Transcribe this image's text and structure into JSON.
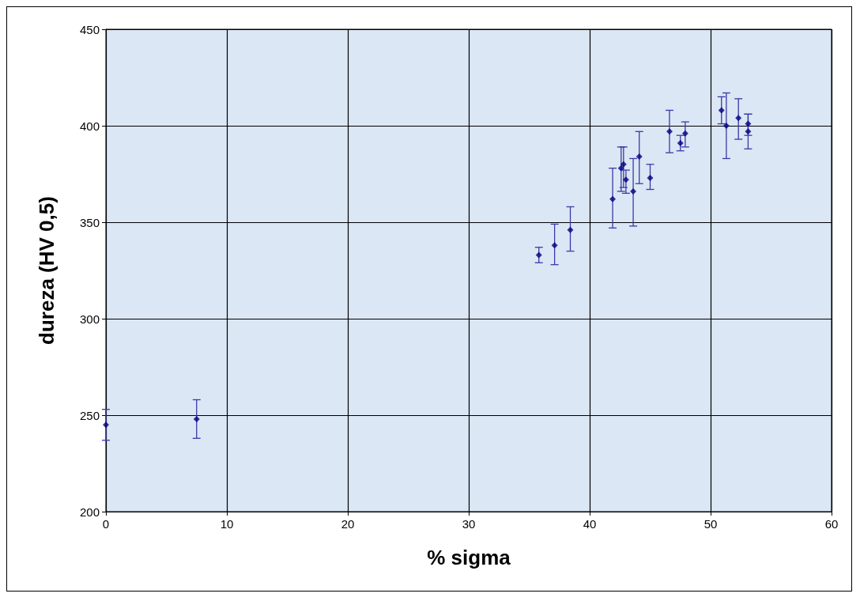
{
  "chart_data": {
    "type": "scatter",
    "xlabel": "% sigma",
    "ylabel": "dureza (HV 0,5)",
    "x": [
      0,
      7.5,
      35.8,
      37.1,
      38.4,
      41.9,
      42.6,
      42.8,
      43.0,
      43.6,
      44.1,
      45.0,
      46.6,
      47.5,
      47.9,
      50.9,
      51.3,
      52.3,
      53.1,
      53.1
    ],
    "values": [
      245,
      248,
      333,
      338,
      346,
      362,
      378,
      380,
      372,
      366,
      384,
      373,
      397,
      391,
      396,
      408,
      400,
      404,
      401,
      397
    ],
    "errors": [
      [
        237,
        253
      ],
      [
        238,
        258
      ],
      [
        329,
        337
      ],
      [
        328,
        349
      ],
      [
        335,
        358
      ],
      [
        347,
        378
      ],
      [
        366,
        389
      ],
      [
        368,
        389
      ],
      [
        365,
        377
      ],
      [
        348,
        383
      ],
      [
        370,
        397
      ],
      [
        367,
        380
      ],
      [
        386,
        408
      ],
      [
        387,
        395
      ],
      [
        389,
        402
      ],
      [
        401,
        415
      ],
      [
        383,
        417
      ],
      [
        393,
        414
      ],
      [
        395,
        406
      ],
      [
        388,
        406
      ]
    ],
    "color": "#000080",
    "marker": "diamond",
    "grid": true,
    "xlim": [
      0,
      60
    ],
    "xticks": [
      0,
      10,
      20,
      30,
      40,
      50,
      60
    ],
    "ylim": [
      200,
      450
    ],
    "yticks": [
      200,
      250,
      300,
      350,
      400,
      450
    ]
  }
}
